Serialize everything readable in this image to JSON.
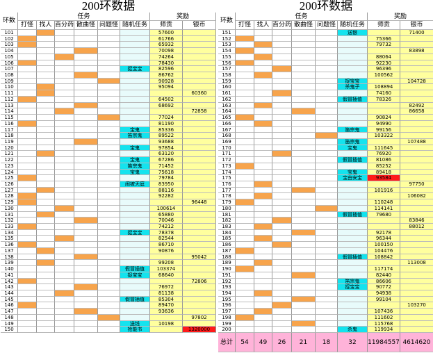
{
  "tables": [
    {
      "title": "200环数据",
      "group_task": "任务",
      "group_reward": "奖励",
      "headers": [
        "环数",
        "打怪",
        "找人",
        "百分药",
        "散曲怪",
        "问题怪",
        "随机任务",
        "师贡",
        "银币"
      ],
      "rows": [
        {
          "n": "101",
          "task": "找人",
          "exp": "57600"
        },
        {
          "n": "102",
          "task": "打怪",
          "exp": "61766"
        },
        {
          "n": "103",
          "task": "打怪",
          "exp": "65932"
        },
        {
          "n": "104",
          "task": "散曲怪",
          "exp": "70098"
        },
        {
          "n": "105",
          "task": "百分药",
          "exp": "74264"
        },
        {
          "n": "106",
          "task": "打怪",
          "exp": "78430"
        },
        {
          "n": "107",
          "rand": "捉宝宝",
          "exp": "82596"
        },
        {
          "n": "108",
          "task": "散曲怪",
          "exp": "86762"
        },
        {
          "n": "109",
          "task": "问题怪",
          "exp": "90928"
        },
        {
          "n": "110",
          "task": "找人",
          "exp": "95094"
        },
        {
          "n": "111",
          "task": "找人",
          "silver": "60360"
        },
        {
          "n": "112",
          "task": "打怪",
          "exp": "64502"
        },
        {
          "n": "113",
          "task": "散曲怪",
          "exp": "68692"
        },
        {
          "n": "114",
          "task": "百分药",
          "silver": "72858"
        },
        {
          "n": "115",
          "task": "问题怪",
          "exp": "77024"
        },
        {
          "n": "116",
          "task": "打怪",
          "exp": "81190"
        },
        {
          "n": "117",
          "rand": "宝鬼",
          "exp": "85336"
        },
        {
          "n": "118",
          "rand": "笛宗鬼",
          "exp": "89522"
        },
        {
          "n": "119",
          "task": "散曲怪",
          "exp": "93688"
        },
        {
          "n": "120",
          "rand": "宝鬼",
          "exp": "97854"
        },
        {
          "n": "121",
          "task": "找人",
          "exp": "63120"
        },
        {
          "n": "122",
          "rand": "宝鬼",
          "exp": "67286"
        },
        {
          "n": "123",
          "rand": "笛宗鬼",
          "exp": "71452"
        },
        {
          "n": "124",
          "rand": "宝鬼",
          "exp": "75618"
        },
        {
          "n": "125",
          "task": "打怪",
          "exp": "79784"
        },
        {
          "n": "126",
          "rand": "闹被天庭",
          "exp": "83950"
        },
        {
          "n": "127",
          "task": "找人",
          "exp": "88116"
        },
        {
          "n": "128",
          "task": "打怪",
          "exp": "92282"
        },
        {
          "n": "129",
          "task": "打怪",
          "silver": "96448"
        },
        {
          "n": "130",
          "task": "百分药",
          "exp": "100614"
        },
        {
          "n": "131",
          "task": "找人",
          "exp": "65880"
        },
        {
          "n": "132",
          "task": "散曲怪",
          "exp": "70046"
        },
        {
          "n": "133",
          "task": "打怪",
          "exp": "74212"
        },
        {
          "n": "134",
          "rand": "捉宝宝",
          "exp": "78378"
        },
        {
          "n": "135",
          "task": "百分药",
          "exp": "82544"
        },
        {
          "n": "136",
          "task": "打怪",
          "exp": "86710"
        },
        {
          "n": "137",
          "task": "找人",
          "exp": "90876"
        },
        {
          "n": "138",
          "task": "散曲怪",
          "silver": "95042"
        },
        {
          "n": "139",
          "task": "找人",
          "exp": "99208"
        },
        {
          "n": "140",
          "rand": "假冒插值",
          "exp": "103374"
        },
        {
          "n": "141",
          "rand": "捉宝宝",
          "exp": "68640"
        },
        {
          "n": "142",
          "task": "打怪",
          "silver": "72806"
        },
        {
          "n": "143",
          "task": "散曲怪",
          "exp": "76972"
        },
        {
          "n": "144",
          "task": "百分药",
          "exp": "81138"
        },
        {
          "n": "145",
          "rand": "假冒插值",
          "exp": "85304"
        },
        {
          "n": "146",
          "task": "打怪",
          "exp": "89470"
        },
        {
          "n": "147",
          "task": "散曲怪",
          "exp": "93636"
        },
        {
          "n": "148",
          "task": "问题怪",
          "silver": "97802"
        },
        {
          "n": "149",
          "rand": "送钱",
          "exp": "10198"
        },
        {
          "n": "150",
          "rand": "抢能书",
          "silver": "1320000",
          "alert": "银币"
        }
      ]
    },
    {
      "title": "200环数据",
      "group_task": "任务",
      "group_reward": "奖励",
      "headers": [
        "环数",
        "打怪",
        "找人",
        "百分药",
        "散曲怪",
        "问题怪",
        "随机任务",
        "师贡",
        "银币"
      ],
      "rows": [
        {
          "n": "151",
          "rand": "送银",
          "silver": "71400"
        },
        {
          "n": "152",
          "task": "打怪",
          "exp": "75366"
        },
        {
          "n": "153",
          "task": "找人",
          "exp": "79732"
        },
        {
          "n": "154",
          "task": "打怪",
          "silver": "83898"
        },
        {
          "n": "155",
          "task": "找人",
          "exp": "88064"
        },
        {
          "n": "156",
          "task": "打怪",
          "exp": "92230"
        },
        {
          "n": "157",
          "task": "百分药",
          "exp": "96396"
        },
        {
          "n": "158",
          "task": "找人",
          "exp": "100562"
        },
        {
          "n": "159",
          "rand": "捉宝宝",
          "silver": "104728"
        },
        {
          "n": "160",
          "rand": "杀鬼子",
          "exp": "108894"
        },
        {
          "n": "161",
          "task": "百分药",
          "exp": "74160"
        },
        {
          "n": "162",
          "rand": "假冒插值",
          "exp": "78326"
        },
        {
          "n": "163",
          "task": "找人",
          "silver": "82492"
        },
        {
          "n": "164",
          "task": "散曲怪",
          "silver": "86658"
        },
        {
          "n": "165",
          "task": "打怪",
          "exp": "90824"
        },
        {
          "n": "166",
          "task": "找人",
          "exp": "94990"
        },
        {
          "n": "167",
          "rand": "笛宗鬼",
          "exp": "99156"
        },
        {
          "n": "168",
          "task": "问题怪",
          "exp": "103322"
        },
        {
          "n": "169",
          "rand": "笛宗鬼",
          "silver": "107488"
        },
        {
          "n": "170",
          "rand": "宝鬼",
          "exp": "111645"
        },
        {
          "n": "171",
          "task": "百分药",
          "exp": "76920"
        },
        {
          "n": "172",
          "rand": "假冒插值",
          "exp": "81086"
        },
        {
          "n": "173",
          "task": "打怪",
          "exp": "85252"
        },
        {
          "n": "174",
          "rand": "宝鬼",
          "exp": "89418"
        },
        {
          "n": "175",
          "rand": "宝由安宝",
          "exp": "93584",
          "alert": "师贡"
        },
        {
          "n": "176",
          "task": "找人",
          "silver": "97750"
        },
        {
          "n": "177",
          "task": "散曲怪",
          "exp": "101916"
        },
        {
          "n": "178",
          "task": "找人",
          "silver": "106082"
        },
        {
          "n": "179",
          "task": "打怪",
          "exp": "110248"
        },
        {
          "n": "180",
          "task": "问题怪",
          "exp": "114141"
        },
        {
          "n": "181",
          "rand": "假冒插值",
          "exp": "79680"
        },
        {
          "n": "182",
          "task": "百分药",
          "silver": "83846"
        },
        {
          "n": "183",
          "task": "找人",
          "silver": "88012"
        },
        {
          "n": "184",
          "task": "散曲怪",
          "exp": "92178"
        },
        {
          "n": "185",
          "task": "找人",
          "exp": "96344"
        },
        {
          "n": "186",
          "task": "百分药",
          "exp": "100150"
        },
        {
          "n": "187",
          "task": "打怪",
          "exp": "104476"
        },
        {
          "n": "188",
          "rand": "假冒插值",
          "exp": "108842"
        },
        {
          "n": "189",
          "task": "找人",
          "silver": "113008"
        },
        {
          "n": "190",
          "task": "打怪",
          "exp": "117174"
        },
        {
          "n": "191",
          "task": "散曲怪",
          "exp": "82440"
        },
        {
          "n": "192",
          "rand": "笛宗鬼",
          "exp": "86606"
        },
        {
          "n": "193",
          "rand": "捉宝宝",
          "exp": "90772"
        },
        {
          "n": "194",
          "task": "找人",
          "exp": "94938"
        },
        {
          "n": "195",
          "task": "散曲怪",
          "exp": "99104"
        },
        {
          "n": "196",
          "task": "百分药",
          "silver": "103270"
        },
        {
          "n": "197",
          "task": "找人",
          "exp": "107436"
        },
        {
          "n": "198",
          "task": "打怪",
          "exp": "111602"
        },
        {
          "n": "199",
          "task": "散曲怪",
          "exp": "115768"
        },
        {
          "n": "200",
          "rand": "杀鬼",
          "exp": "119934"
        }
      ],
      "total": {
        "label": "总计",
        "values": [
          "54",
          "49",
          "26",
          "21",
          "18",
          "32",
          "11984557",
          "4614620"
        ]
      }
    }
  ]
}
